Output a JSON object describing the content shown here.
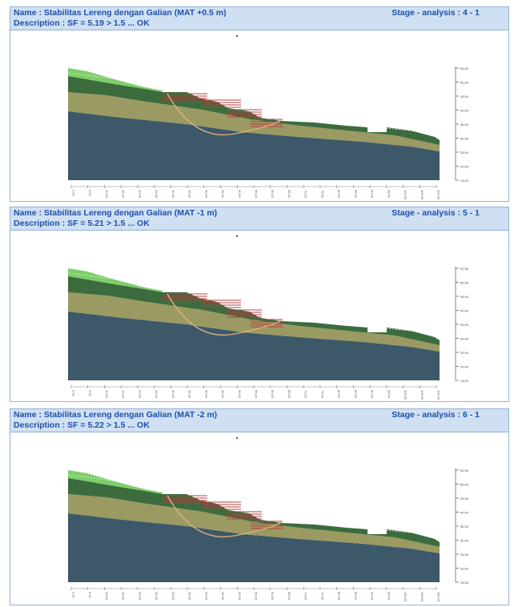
{
  "panels": [
    {
      "name": "Name : Stabilitas Lereng dengan Galian (MAT +0.5 m)",
      "description": "Description : SF = 5.19 > 1.5 ... OK",
      "stage": "Stage - analysis : 4 - 1",
      "scale_labels": [
        "52.50",
        "50.00",
        "45.00",
        "40.00",
        "35.00",
        "30.00",
        "25.00",
        "20.00",
        "15.00"
      ],
      "x_labels": [
        "0.00",
        "5.00",
        "10.00",
        "15.00",
        "20.00",
        "25.00",
        "30.00",
        "35.00",
        "40.00",
        "45.00",
        "50.00",
        "55.00",
        "60.00",
        "65.00",
        "70.00",
        "75.00",
        "80.00",
        "85.00",
        "90.00",
        "95.00",
        "100.00",
        "105.00",
        "110.00"
      ]
    },
    {
      "name": "Name : Stabilitas Lereng dengan Galian (MAT -1 m)",
      "description": "Description : SF = 5.21 > 1.5 ... OK",
      "stage": "Stage - analysis : 5 - 1",
      "scale_labels": [
        "52.50",
        "50.00",
        "45.00",
        "40.00",
        "35.00",
        "30.00",
        "25.00",
        "20.00",
        "15.00"
      ],
      "x_labels": [
        "0.00",
        "5.00",
        "10.00",
        "15.00",
        "20.00",
        "25.00",
        "30.00",
        "35.00",
        "40.00",
        "45.00",
        "50.00",
        "55.00",
        "60.00",
        "65.00",
        "70.00",
        "75.00",
        "80.00",
        "85.00",
        "90.00",
        "95.00",
        "100.00",
        "105.00",
        "110.00"
      ]
    },
    {
      "name": "Name : Stabilitas Lereng dengan Galian (MAT -2 m)",
      "description": "Description : SF = 5.22 > 1.5 ... OK",
      "stage": "Stage - analysis : 6 - 1",
      "scale_labels": [
        "52.50",
        "50.00",
        "45.00",
        "40.00",
        "35.00",
        "30.00",
        "25.00",
        "20.00",
        "15.00"
      ],
      "x_labels": [
        "0.00",
        "5.00",
        "10.00",
        "15.00",
        "20.00",
        "25.00",
        "30.00",
        "35.00",
        "40.00",
        "45.00",
        "50.00",
        "55.00",
        "60.00",
        "65.00",
        "70.00",
        "75.00",
        "80.00",
        "85.00",
        "90.00",
        "95.00",
        "100.00",
        "105.00",
        "110.00"
      ]
    }
  ],
  "colors": {
    "topsoil": "#7ecf6a",
    "dark_green": "#3c6b3e",
    "khaki": "#9a9a62",
    "slate": "#3d5868",
    "slip_circle": "#e0b27c",
    "anchors": "#b04040"
  }
}
